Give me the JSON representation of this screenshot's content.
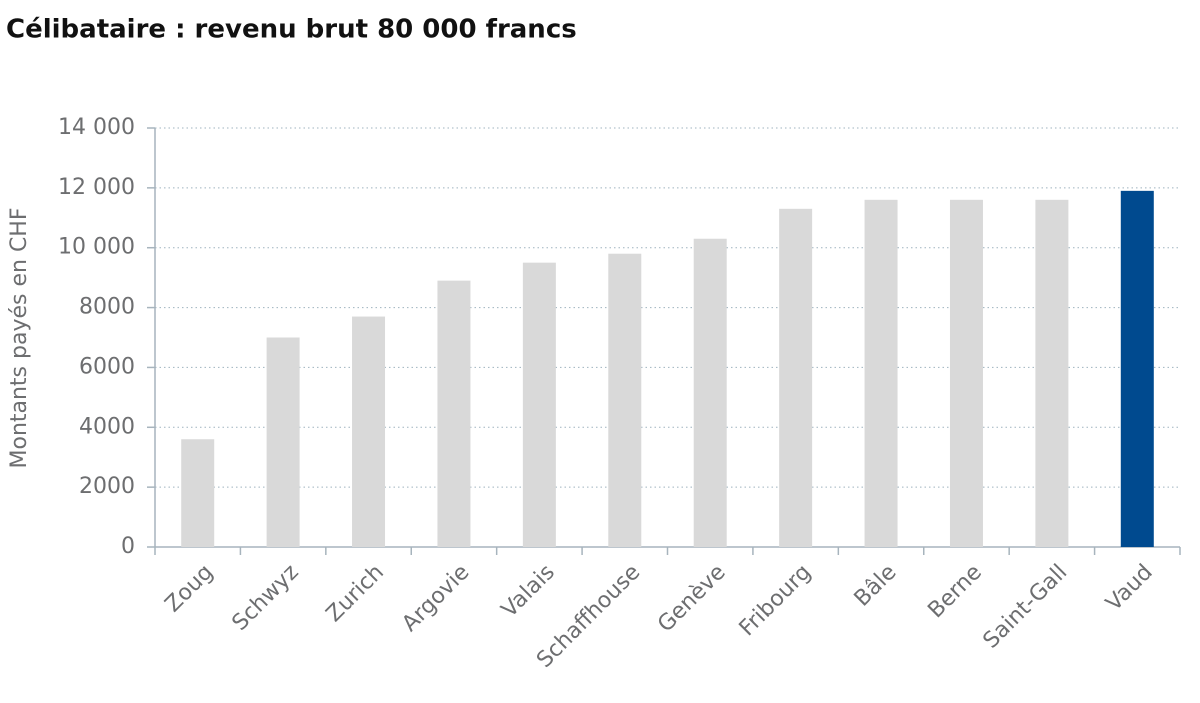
{
  "chart_data": {
    "type": "bar",
    "title": "Célibataire : revenu brut 80 000 francs",
    "y_label": "Montants payés en CHF",
    "categories": [
      "Zoug",
      "Schwyz",
      "Zurich",
      "Argovie",
      "Valais",
      "Schaffhouse",
      "Genève",
      "Fribourg",
      "Bâle",
      "Berne",
      "Saint-Gall",
      "Vaud"
    ],
    "values": [
      3600,
      7000,
      7700,
      8900,
      9500,
      9800,
      10300,
      11300,
      11600,
      11600,
      11600,
      11900
    ],
    "colors": [
      "#d9d9d9",
      "#d9d9d9",
      "#d9d9d9",
      "#d9d9d9",
      "#d9d9d9",
      "#d9d9d9",
      "#d9d9d9",
      "#d9d9d9",
      "#d9d9d9",
      "#d9d9d9",
      "#d9d9d9",
      "#004a8f"
    ],
    "ylim": [
      0,
      14000
    ],
    "yticks": [
      0,
      2000,
      4000,
      6000,
      8000,
      {
        "value": 10000,
        "label": "10 000"
      },
      {
        "value": 12000,
        "label": "12 000"
      },
      {
        "value": 14000,
        "label": "14 000"
      }
    ],
    "grid": true
  }
}
